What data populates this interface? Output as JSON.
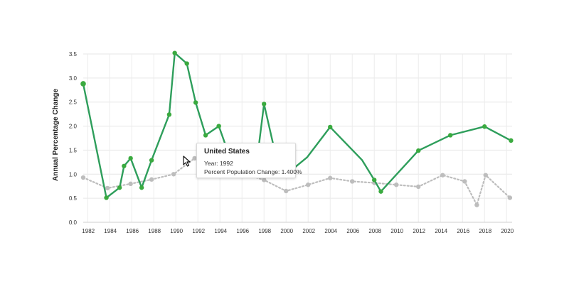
{
  "chart_data": {
    "type": "line",
    "ylabel": "Annual Percentage Change",
    "ylim": [
      0,
      3.5
    ],
    "yticks": [
      "0.0",
      "0.5",
      "1.0",
      "1.5",
      "2.0",
      "2.5",
      "3.0",
      "3.5"
    ],
    "xticks": [
      "1982",
      "1984",
      "1986",
      "1988",
      "1990",
      "1992",
      "1994",
      "1996",
      "1998",
      "2000",
      "2002",
      "2004",
      "2006",
      "2008",
      "2010",
      "2012",
      "2014",
      "2016",
      "2018",
      "2020"
    ],
    "grid": true,
    "colors": {
      "primary": "#2e9e5b",
      "primary_dot": "#3aaa3f",
      "secondary": "#bdbdbd"
    },
    "series": [
      {
        "style": "solid",
        "points": [
          [
            1981.6,
            2.88
          ],
          [
            1983.7,
            0.51
          ],
          [
            1984.9,
            0.72
          ],
          [
            1985.3,
            1.17
          ],
          [
            1985.9,
            1.33
          ],
          [
            1986.9,
            0.72
          ],
          [
            1987.8,
            1.29
          ],
          [
            1989.4,
            2.24
          ],
          [
            1989.9,
            3.52
          ],
          [
            1991.0,
            3.3
          ],
          [
            1991.8,
            2.49
          ],
          [
            1992.7,
            1.81
          ],
          [
            1993.9,
            2.0
          ],
          [
            1994.9,
            1.35
          ],
          [
            1997.4,
            1.35
          ],
          [
            1998.0,
            2.46
          ],
          [
            1999.1,
            1.35
          ],
          [
            2000.1,
            1.01
          ],
          [
            2001.9,
            1.35
          ],
          [
            2004.0,
            1.98
          ],
          [
            2006.9,
            1.29
          ],
          [
            2008.0,
            0.88
          ],
          [
            2008.6,
            0.64
          ],
          [
            2012.0,
            1.49
          ],
          [
            2014.9,
            1.81
          ],
          [
            2018.0,
            1.99
          ],
          [
            2020.4,
            1.7
          ]
        ],
        "markers": [
          0,
          1,
          2,
          3,
          4,
          5,
          6,
          7,
          8,
          9,
          10,
          11,
          12,
          15,
          17,
          19,
          21,
          22,
          23,
          24,
          25,
          26
        ]
      },
      {
        "style": "dotted",
        "points": [
          [
            1981.6,
            0.93
          ],
          [
            1983.8,
            0.71
          ],
          [
            1985.9,
            0.8
          ],
          [
            1987.8,
            0.89
          ],
          [
            1989.8,
            1.0
          ],
          [
            1991.7,
            1.33
          ],
          [
            1998.0,
            0.88
          ],
          [
            2000.0,
            0.65
          ],
          [
            2002.0,
            0.78
          ],
          [
            2004.0,
            0.92
          ],
          [
            2006.0,
            0.85
          ],
          [
            2008.0,
            0.82
          ],
          [
            2010.0,
            0.78
          ],
          [
            2012.0,
            0.74
          ],
          [
            2014.2,
            0.98
          ],
          [
            2016.2,
            0.85
          ],
          [
            2017.3,
            0.36
          ],
          [
            2018.1,
            0.98
          ],
          [
            2020.3,
            0.51
          ]
        ]
      }
    ],
    "tooltip": {
      "title": "United States",
      "line1": "Year: 1992",
      "line2": "Percent Population Change: 1.400%"
    }
  }
}
